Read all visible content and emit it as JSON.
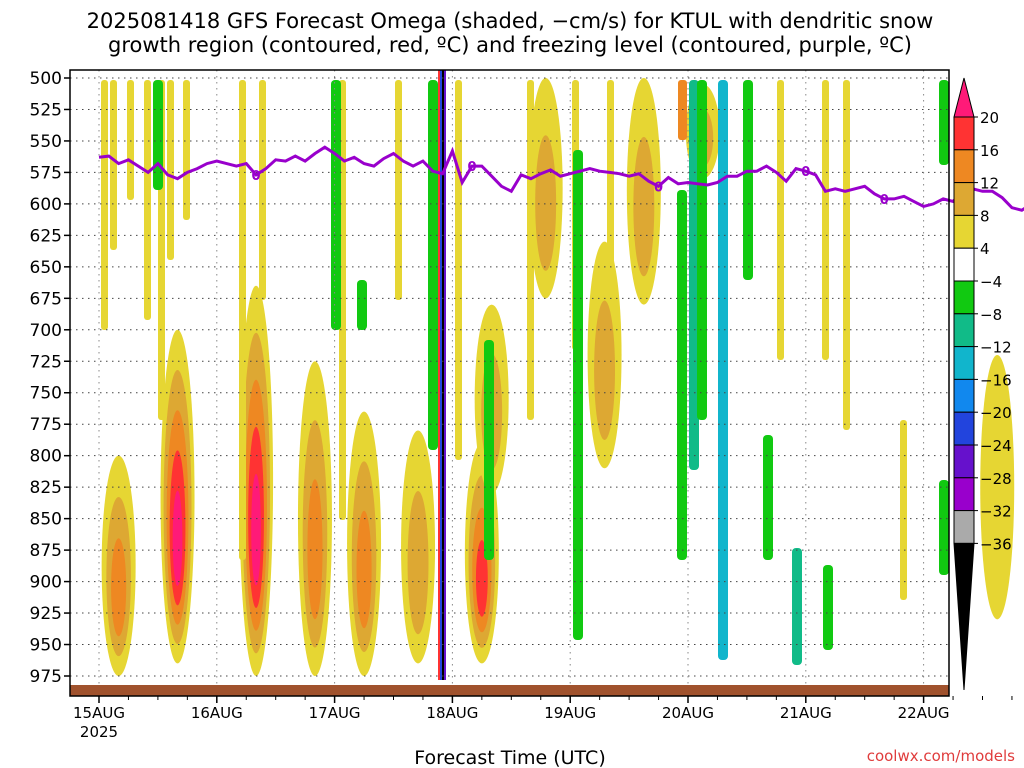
{
  "title_line1": "2025081418 GFS Forecast Omega (shaded, −cm/s) for KTUL with dendritic snow",
  "title_line2": "growth region (contoured, red, ºC) and freezing level (contoured, purple, ºC)",
  "xlabel": "Forecast Time (UTC)",
  "watermark": "coolwx.com/models",
  "colors": {
    "freezing_line": "#9900cc",
    "ground": "#a0522d"
  },
  "chart_data": {
    "type": "heatmap",
    "x_ticks": [
      "15AUG",
      "16AUG",
      "17AUG",
      "18AUG",
      "19AUG",
      "20AUG",
      "21AUG",
      "22AUG"
    ],
    "x_year_label": "2025",
    "y_ticks": [
      "500",
      "525",
      "550",
      "575",
      "600",
      "625",
      "650",
      "675",
      "700",
      "725",
      "750",
      "775",
      "800",
      "825",
      "850",
      "875",
      "900",
      "925",
      "950",
      "975"
    ],
    "ylim": [
      500,
      990
    ],
    "xlim_hours": [
      0,
      190
    ],
    "grid": true,
    "colorbar": {
      "labels": [
        "20",
        "16",
        "12",
        "8",
        "4",
        "−4",
        "−8",
        "−12",
        "−16",
        "−20",
        "−24",
        "−28",
        "−32",
        "−36"
      ],
      "colors": [
        "#ff1a78",
        "#ff3333",
        "#ee8822",
        "#dda833",
        "#e6d633",
        "#ffffff",
        "#11c911",
        "#11bb88",
        "#11b5cc",
        "#1188ee",
        "#2244dd",
        "#6611cc",
        "#9900cc",
        "#aaaaaa",
        "#000000"
      ]
    },
    "freezing_level": {
      "label": "0",
      "hours": [
        0,
        2,
        4,
        6,
        8,
        10,
        12,
        14,
        16,
        18,
        20,
        22,
        24,
        26,
        28,
        30,
        32,
        34,
        36,
        38,
        40,
        42,
        44,
        46,
        48,
        50,
        52,
        54,
        56,
        58,
        60,
        62,
        64,
        66,
        68,
        70,
        72,
        74,
        76,
        78,
        80,
        82,
        84,
        86,
        88,
        90,
        92,
        94,
        96,
        98,
        100,
        102,
        104,
        106,
        108,
        110,
        112,
        114,
        116,
        118,
        120,
        122,
        124,
        126,
        128,
        130,
        132,
        134,
        136,
        138,
        140,
        142,
        144,
        146,
        148,
        150,
        152,
        154,
        156,
        158,
        160,
        162,
        164,
        166,
        168,
        170,
        172,
        174,
        176,
        178,
        180,
        182,
        184,
        186,
        188,
        190
      ],
      "pressure": [
        563,
        562,
        568,
        565,
        570,
        575,
        568,
        577,
        580,
        575,
        572,
        568,
        566,
        568,
        570,
        568,
        577,
        572,
        565,
        566,
        562,
        566,
        560,
        555,
        560,
        566,
        563,
        568,
        570,
        564,
        560,
        566,
        570,
        566,
        574,
        576,
        558,
        583,
        570,
        570,
        578,
        586,
        590,
        577,
        580,
        576,
        573,
        578,
        576,
        574,
        572,
        574,
        575,
        576,
        578,
        576,
        582,
        586,
        579,
        584,
        583,
        584,
        585,
        583,
        578,
        578,
        574,
        574,
        570,
        575,
        582,
        572,
        574,
        577,
        590,
        588,
        590,
        588,
        586,
        592,
        596,
        596,
        594,
        598,
        602,
        600,
        596,
        598,
        590,
        588,
        590,
        590,
        595,
        603,
        605,
        600
      ]
    },
    "omega_features": [
      {
        "hour": 4,
        "p_top": 800,
        "p_bot": 975,
        "peak": 14
      },
      {
        "hour": 16,
        "p_top": 700,
        "p_bot": 965,
        "peak": 22
      },
      {
        "hour": 32,
        "p_top": 665,
        "p_bot": 975,
        "peak": 22
      },
      {
        "hour": 44,
        "p_top": 725,
        "p_bot": 975,
        "peak": 14
      },
      {
        "hour": 54,
        "p_top": 765,
        "p_bot": 975,
        "peak": 12
      },
      {
        "hour": 65,
        "p_top": 780,
        "p_bot": 965,
        "peak": 10
      },
      {
        "hour": 78,
        "p_top": 790,
        "p_bot": 965,
        "peak": 18
      },
      {
        "hour": 80,
        "p_top": 680,
        "p_bot": 830,
        "peak": 10
      },
      {
        "hour": 91,
        "p_top": 500,
        "p_bot": 675,
        "peak": 8
      },
      {
        "hour": 103,
        "p_top": 630,
        "p_bot": 810,
        "peak": 10
      },
      {
        "hour": 111,
        "p_top": 500,
        "p_bot": 680,
        "peak": 8
      },
      {
        "hour": 123,
        "p_top": 505,
        "p_bot": 580,
        "peak": 8
      },
      {
        "hour": 183,
        "p_top": 720,
        "p_bot": 930,
        "peak": 6
      }
    ]
  }
}
